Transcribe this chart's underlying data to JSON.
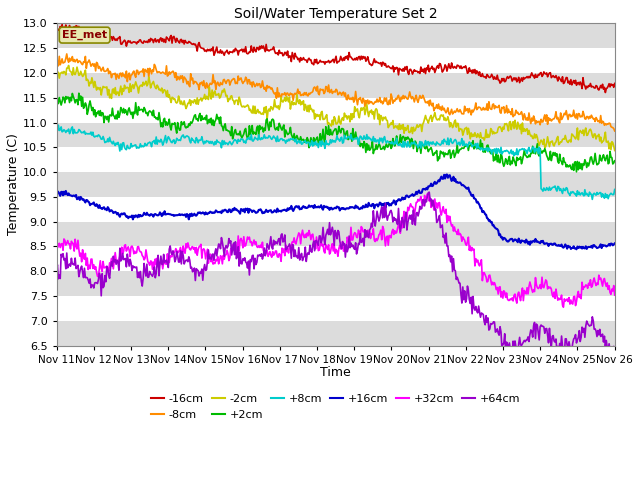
{
  "title": "Soil/Water Temperature Set 2",
  "xlabel": "Time",
  "ylabel": "Temperature (C)",
  "ylim": [
    6.5,
    13.0
  ],
  "yticks": [
    6.5,
    7.0,
    7.5,
    8.0,
    8.5,
    9.0,
    9.5,
    10.0,
    10.5,
    11.0,
    11.5,
    12.0,
    12.5,
    13.0
  ],
  "x_labels": [
    "Nov 11",
    "Nov 12",
    "Nov 13",
    "Nov 14",
    "Nov 15",
    "Nov 16",
    "Nov 17",
    "Nov 18",
    "Nov 19",
    "Nov 20",
    "Nov 21",
    "Nov 22",
    "Nov 23",
    "Nov 24",
    "Nov 25",
    "Nov 26"
  ],
  "annotation": "EE_met",
  "fig_bg": "#ffffff",
  "plot_bg": "#ffffff",
  "band_color": "#dcdcdc",
  "series": {
    "-16cm": {
      "color": "#cc0000",
      "linewidth": 1.2
    },
    "-8cm": {
      "color": "#ff8c00",
      "linewidth": 1.2
    },
    "-2cm": {
      "color": "#cccc00",
      "linewidth": 1.2
    },
    "+2cm": {
      "color": "#00bb00",
      "linewidth": 1.2
    },
    "+8cm": {
      "color": "#00cccc",
      "linewidth": 1.2
    },
    "+16cm": {
      "color": "#0000cc",
      "linewidth": 1.5
    },
    "+32cm": {
      "color": "#ff00ff",
      "linewidth": 1.2
    },
    "+64cm": {
      "color": "#9900cc",
      "linewidth": 1.2
    }
  },
  "legend_order": [
    "-16cm",
    "-8cm",
    "-2cm",
    "+2cm",
    "+8cm",
    "+16cm",
    "+32cm",
    "+64cm"
  ]
}
